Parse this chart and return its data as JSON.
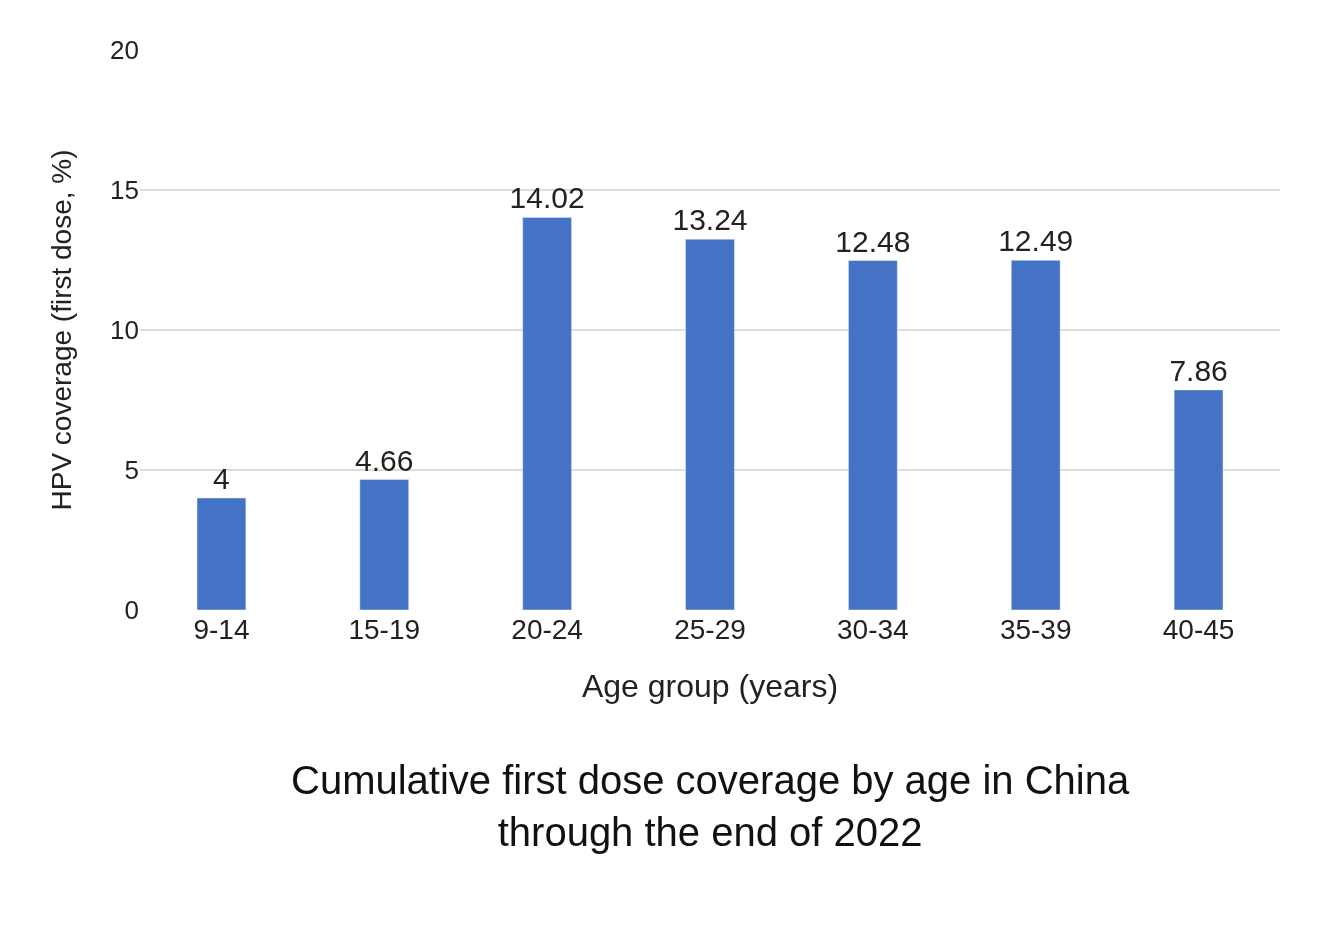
{
  "chart_data": {
    "type": "bar",
    "title": "Cumulative first dose coverage by age in China\nthrough the end of 2022",
    "xlabel": "Age group (years)",
    "ylabel": "HPV coverage (first dose, %)",
    "categories": [
      "9-14",
      "15-19",
      "20-24",
      "25-29",
      "30-34",
      "35-39",
      "40-45"
    ],
    "values": [
      4,
      4.66,
      14.02,
      13.24,
      12.48,
      12.49,
      7.86
    ],
    "color": "#4472c4",
    "ylim": [
      0,
      20
    ],
    "yticks": [
      0,
      5,
      10,
      15,
      20
    ],
    "grid": "y",
    "data_labels": true
  }
}
